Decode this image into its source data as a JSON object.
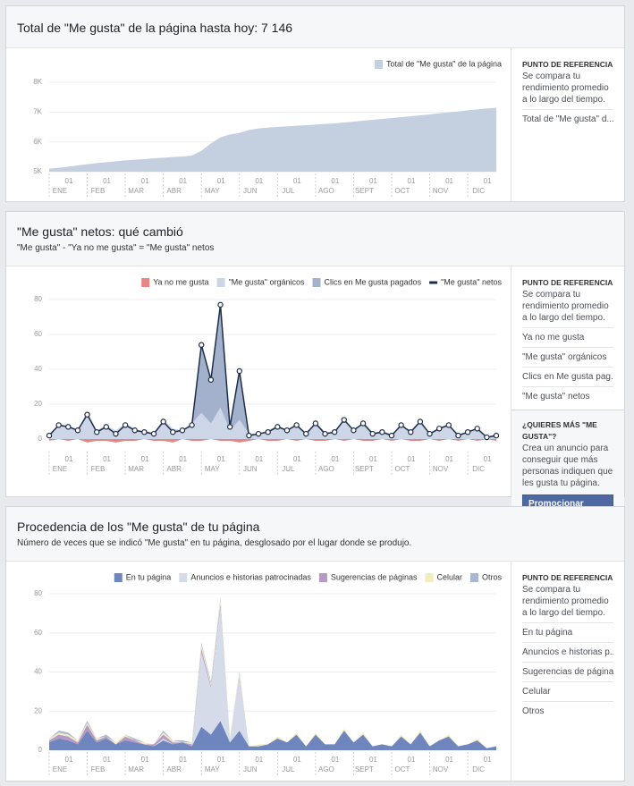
{
  "panels": [
    {
      "title": "Total de \"Me gusta\" de la página hasta hoy: 7 146",
      "sidebar": {
        "heading": "PUNTO DE REFERENCIA",
        "text": "Se compara tu rendimiento promedio a lo largo del tiempo.",
        "items": [
          "Total de \"Me gusta\" d..."
        ]
      }
    },
    {
      "title": "\"Me gusta\" netos: qué cambió",
      "subtitle": "\"Me gusta\" - \"Ya no me gusta\" = \"Me gusta\" netos",
      "sidebar": {
        "heading": "PUNTO DE REFERENCIA",
        "text": "Se compara tu rendimiento promedio a lo largo del tiempo.",
        "items": [
          "Ya no me gusta",
          "\"Me gusta\" orgánicos",
          "Clics en Me gusta pag...",
          "\"Me gusta\" netos"
        ]
      },
      "promo": {
        "heading": "¿QUIERES MÁS \"ME GUSTA\"?",
        "text": "Crea un anuncio para conseguir que más personas indiquen que les gusta tu página.",
        "button": "Promocionar página"
      }
    },
    {
      "title": "Procedencia de los \"Me gusta\" de tu página",
      "subtitle": "Número de veces que se indicó \"Me gusta\" en tu página, desglosado por el lugar donde se produjo.",
      "sidebar": {
        "heading": "PUNTO DE REFERENCIA",
        "text": "Se compara tu rendimiento promedio a lo largo del tiempo.",
        "items": [
          "En tu página",
          "Anuncios e historias p...",
          "Sugerencias de páginas",
          "Celular",
          "Otros"
        ]
      }
    }
  ],
  "chart_data": [
    {
      "type": "area",
      "x_day_label": "01",
      "categories": [
        "ENE",
        null,
        null,
        null,
        "FEB",
        null,
        null,
        null,
        "MAR",
        null,
        null,
        null,
        "ABR",
        null,
        null,
        null,
        "MAY",
        null,
        null,
        null,
        "JUN",
        null,
        null,
        null,
        "JUL",
        null,
        null,
        null,
        "AGO",
        null,
        null,
        null,
        "SEPT",
        null,
        null,
        null,
        "OCT",
        null,
        null,
        null,
        "NOV",
        null,
        null,
        null,
        "DIC",
        null,
        null,
        null
      ],
      "ylim": [
        5000,
        8000
      ],
      "yticks": [
        {
          "value": 5000,
          "label": "5K"
        },
        {
          "value": 6000,
          "label": "6K"
        },
        {
          "value": 7000,
          "label": "7K"
        },
        {
          "value": 8000,
          "label": "8K"
        }
      ],
      "grid": true,
      "series": [
        {
          "name": "Total de \"Me gusta\" de la página",
          "color": "#c4cfe0",
          "values": [
            5100,
            5130,
            5170,
            5210,
            5250,
            5290,
            5320,
            5350,
            5380,
            5400,
            5420,
            5450,
            5470,
            5490,
            5510,
            5540,
            5700,
            5950,
            6150,
            6250,
            6300,
            6400,
            6450,
            6480,
            6500,
            6520,
            6540,
            6560,
            6580,
            6600,
            6620,
            6650,
            6680,
            6710,
            6740,
            6770,
            6800,
            6830,
            6860,
            6890,
            6920,
            6960,
            6990,
            7020,
            7060,
            7090,
            7120,
            7146
          ]
        }
      ]
    },
    {
      "type": "area_line",
      "x_day_label": "01",
      "categories": [
        "ENE",
        null,
        null,
        null,
        "FEB",
        null,
        null,
        null,
        "MAR",
        null,
        null,
        null,
        "ABR",
        null,
        null,
        null,
        "MAY",
        null,
        null,
        null,
        "JUN",
        null,
        null,
        null,
        "JUL",
        null,
        null,
        null,
        "AGO",
        null,
        null,
        null,
        "SEPT",
        null,
        null,
        null,
        "OCT",
        null,
        null,
        null,
        "NOV",
        null,
        null,
        null,
        "DIC",
        null,
        null,
        null
      ],
      "ylim": [
        -6,
        85
      ],
      "yticks": [
        0,
        20,
        40,
        60,
        80
      ],
      "grid": true,
      "series": [
        {
          "name": "Ya no me gusta",
          "color": "#e98582",
          "values": [
            -1,
            0,
            -1,
            0,
            -2,
            -1,
            -1,
            -2,
            -1,
            -1,
            0,
            -1,
            -1,
            -2,
            0,
            -1,
            -1,
            0,
            -1,
            -1,
            -2,
            -1,
            0,
            -1,
            -1,
            0,
            -1,
            0,
            -1,
            -1,
            0,
            -1,
            0,
            -1,
            -1,
            0,
            -1,
            0,
            -1,
            -1,
            0,
            -1,
            0,
            -1,
            0,
            -1,
            0,
            -1
          ]
        },
        {
          "name": "\"Me gusta\" orgánicos",
          "color": "#cdd6e6",
          "values": [
            3,
            8,
            8,
            5,
            16,
            5,
            8,
            5,
            9,
            6,
            4,
            4,
            11,
            6,
            5,
            9,
            15,
            9,
            18,
            5,
            11,
            3,
            3,
            5,
            8,
            5,
            9,
            3,
            10,
            4,
            4,
            12,
            5,
            10,
            4,
            4,
            3,
            8,
            5,
            11,
            3,
            7,
            8,
            3,
            4,
            7,
            1,
            3
          ]
        },
        {
          "name": "Clics en Me gusta pagados",
          "color": "#a3b1cd",
          "values": [
            0,
            0,
            0,
            0,
            0,
            0,
            0,
            0,
            0,
            0,
            0,
            0,
            0,
            0,
            0,
            0,
            40,
            25,
            60,
            3,
            30,
            0,
            0,
            0,
            0,
            0,
            0,
            0,
            0,
            0,
            0,
            0,
            0,
            0,
            0,
            0,
            0,
            0,
            0,
            0,
            0,
            0,
            0,
            0,
            0,
            0,
            0,
            0
          ]
        },
        {
          "name": "\"Me gusta\" netos",
          "color": "#1e2d4a",
          "line": true,
          "values": [
            2,
            8,
            7,
            5,
            14,
            4,
            7,
            3,
            8,
            5,
            4,
            3,
            10,
            4,
            5,
            8,
            54,
            34,
            77,
            7,
            39,
            2,
            3,
            4,
            7,
            5,
            8,
            3,
            9,
            3,
            4,
            11,
            5,
            9,
            3,
            4,
            2,
            8,
            4,
            10,
            3,
            6,
            8,
            2,
            4,
            6,
            1,
            2
          ]
        }
      ]
    },
    {
      "type": "stacked_area",
      "x_day_label": "01",
      "categories": [
        "ENE",
        null,
        null,
        null,
        "FEB",
        null,
        null,
        null,
        "MAR",
        null,
        null,
        null,
        "ABR",
        null,
        null,
        null,
        "MAY",
        null,
        null,
        null,
        "JUN",
        null,
        null,
        null,
        "JUL",
        null,
        null,
        null,
        "AGO",
        null,
        null,
        null,
        "SEPT",
        null,
        null,
        null,
        "OCT",
        null,
        null,
        null,
        "NOV",
        null,
        null,
        null,
        "DIC",
        null,
        null,
        null
      ],
      "ylim": [
        0,
        85
      ],
      "yticks": [
        0,
        20,
        40,
        60,
        80
      ],
      "grid": true,
      "series": [
        {
          "name": "En tu página",
          "color": "#6e86bd",
          "values": [
            4,
            6,
            5,
            3,
            10,
            4,
            6,
            3,
            5,
            4,
            3,
            2,
            5,
            3,
            4,
            2,
            12,
            8,
            15,
            4,
            10,
            2,
            2,
            3,
            6,
            4,
            8,
            2,
            8,
            3,
            3,
            10,
            4,
            8,
            2,
            3,
            2,
            7,
            3,
            9,
            2,
            5,
            7,
            2,
            3,
            5,
            1,
            2
          ]
        },
        {
          "name": "Anuncios e historias patrocinadas",
          "color": "#d5dbe8",
          "values": [
            0,
            0,
            0,
            0,
            0,
            0,
            0,
            0,
            0,
            0,
            0,
            0,
            1,
            0,
            0,
            0,
            38,
            24,
            58,
            2,
            26,
            0,
            0,
            0,
            0,
            0,
            0,
            0,
            0,
            0,
            0,
            0,
            0,
            0,
            0,
            0,
            0,
            0,
            0,
            0,
            0,
            0,
            0,
            0,
            0,
            0,
            0,
            0
          ]
        },
        {
          "name": "Sugerencias de páginas",
          "color": "#b699c6",
          "values": [
            1,
            2,
            2,
            1,
            3,
            1,
            1,
            0,
            2,
            1,
            0,
            1,
            2,
            1,
            0,
            1,
            2,
            1,
            2,
            0,
            1,
            0,
            0,
            0,
            0,
            0,
            0,
            0,
            0,
            0,
            0,
            0,
            0,
            0,
            0,
            0,
            0,
            0,
            0,
            0,
            0,
            0,
            0,
            0,
            0,
            0,
            0,
            0
          ]
        },
        {
          "name": "Celular",
          "color": "#f2edbc",
          "values": [
            1,
            1,
            1,
            1,
            1,
            1,
            0,
            1,
            1,
            0,
            1,
            0,
            1,
            1,
            0,
            1,
            2,
            1,
            2,
            1,
            2,
            0,
            1,
            0,
            1,
            0,
            1,
            0,
            1,
            0,
            0,
            1,
            0,
            1,
            0,
            0,
            0,
            1,
            0,
            1,
            0,
            0,
            1,
            0,
            0,
            1,
            0,
            0
          ]
        },
        {
          "name": "Otros",
          "color": "#a9b7d2",
          "values": [
            0,
            1,
            1,
            0,
            1,
            0,
            1,
            0,
            0,
            1,
            0,
            0,
            1,
            0,
            1,
            0,
            1,
            1,
            1,
            0,
            1,
            0,
            0,
            0,
            0,
            0,
            0,
            0,
            0,
            0,
            0,
            0,
            0,
            0,
            0,
            0,
            0,
            0,
            0,
            0,
            0,
            0,
            0,
            0,
            0,
            0,
            0,
            0
          ]
        }
      ]
    }
  ]
}
